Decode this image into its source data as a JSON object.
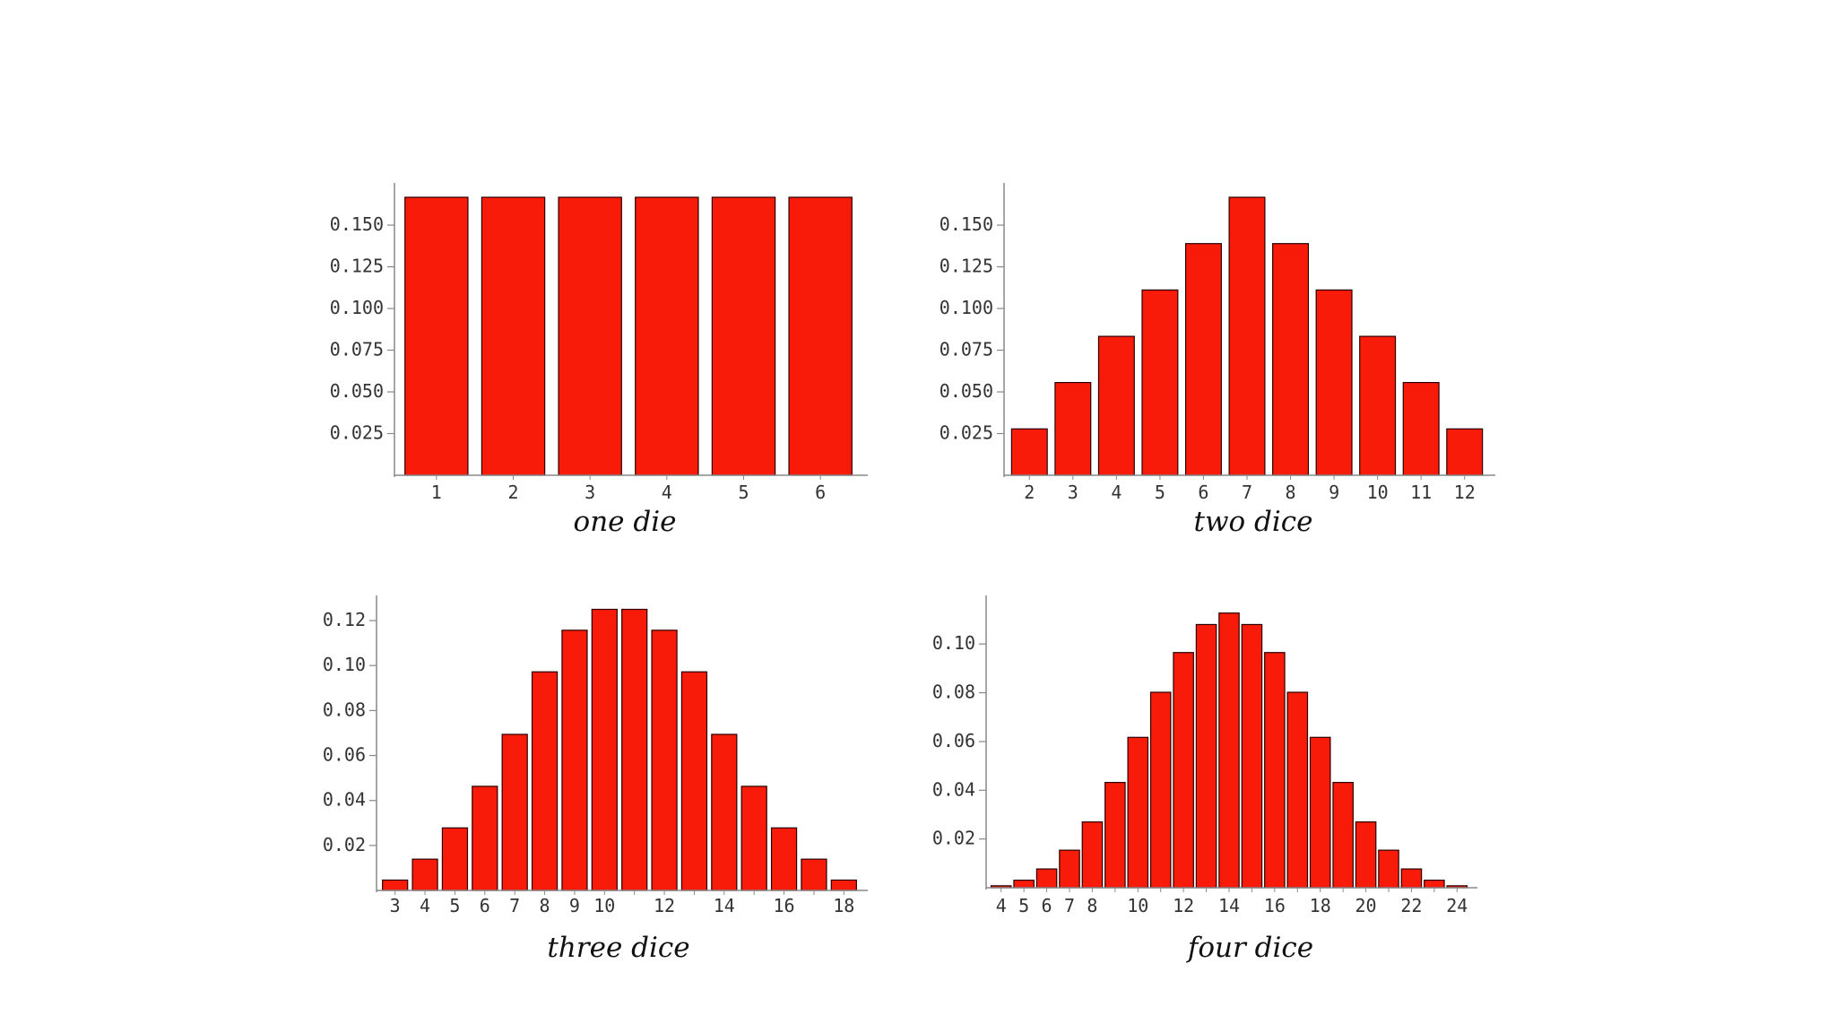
{
  "colors": {
    "bar_fill": "#f81b0a",
    "bar_stroke": "#2a0000",
    "axis": "#888888",
    "text": "#333333"
  },
  "chart_data": [
    {
      "type": "bar",
      "xlabel": "one die",
      "ylabel": "",
      "categories": [
        1,
        2,
        3,
        4,
        5,
        6
      ],
      "values": [
        0.1667,
        0.1667,
        0.1667,
        0.1667,
        0.1667,
        0.1667
      ],
      "xticks": [
        "1",
        "2",
        "3",
        "4",
        "5",
        "6"
      ],
      "yticks": [
        "0.025",
        "0.050",
        "0.075",
        "0.100",
        "0.125",
        "0.150"
      ],
      "ylim": [
        0,
        0.171
      ],
      "grid": false
    },
    {
      "type": "bar",
      "xlabel": "two dice",
      "ylabel": "",
      "categories": [
        2,
        3,
        4,
        5,
        6,
        7,
        8,
        9,
        10,
        11,
        12
      ],
      "values": [
        0.0278,
        0.0556,
        0.0833,
        0.1111,
        0.1389,
        0.1667,
        0.1389,
        0.1111,
        0.0833,
        0.0556,
        0.0278
      ],
      "xticks": [
        "2",
        "3",
        "4",
        "5",
        "6",
        "7",
        "8",
        "9",
        "10",
        "11",
        "12"
      ],
      "yticks": [
        "0.025",
        "0.050",
        "0.075",
        "0.100",
        "0.125",
        "0.150"
      ],
      "ylim": [
        0,
        0.171
      ],
      "grid": false
    },
    {
      "type": "bar",
      "xlabel": "three dice",
      "ylabel": "",
      "categories": [
        3,
        4,
        5,
        6,
        7,
        8,
        9,
        10,
        11,
        12,
        13,
        14,
        15,
        16,
        17,
        18
      ],
      "values": [
        0.0046,
        0.0139,
        0.0278,
        0.0463,
        0.0694,
        0.0972,
        0.1157,
        0.125,
        0.125,
        0.1157,
        0.0972,
        0.0694,
        0.0463,
        0.0278,
        0.0139,
        0.0046
      ],
      "xticks": [
        "3",
        "4",
        "5",
        "6",
        "7",
        "8",
        "9",
        "10",
        "",
        "12",
        "",
        "14",
        "",
        "16",
        "",
        "18"
      ],
      "yticks": [
        "0.02",
        "0.04",
        "0.06",
        "0.08",
        "0.10",
        "0.12"
      ],
      "ylim": [
        0,
        0.128
      ],
      "grid": false
    },
    {
      "type": "bar",
      "xlabel": "four dice",
      "ylabel": "",
      "categories": [
        4,
        5,
        6,
        7,
        8,
        9,
        10,
        11,
        12,
        13,
        14,
        15,
        16,
        17,
        18,
        19,
        20,
        21,
        22,
        23,
        24
      ],
      "values": [
        0.0008,
        0.0031,
        0.0077,
        0.0154,
        0.027,
        0.0432,
        0.0617,
        0.0802,
        0.0965,
        0.108,
        0.1127,
        0.108,
        0.0965,
        0.0802,
        0.0617,
        0.0432,
        0.027,
        0.0154,
        0.0077,
        0.0031,
        0.0008
      ],
      "xticks": [
        "4",
        "5",
        "6",
        "7",
        "8",
        "",
        "10",
        "",
        "12",
        "",
        "14",
        "",
        "16",
        "",
        "18",
        "",
        "20",
        "",
        "22",
        "",
        "24"
      ],
      "yticks": [
        "0.02",
        "0.04",
        "0.06",
        "0.08",
        "0.10"
      ],
      "ylim": [
        0,
        0.117
      ],
      "grid": false
    }
  ]
}
